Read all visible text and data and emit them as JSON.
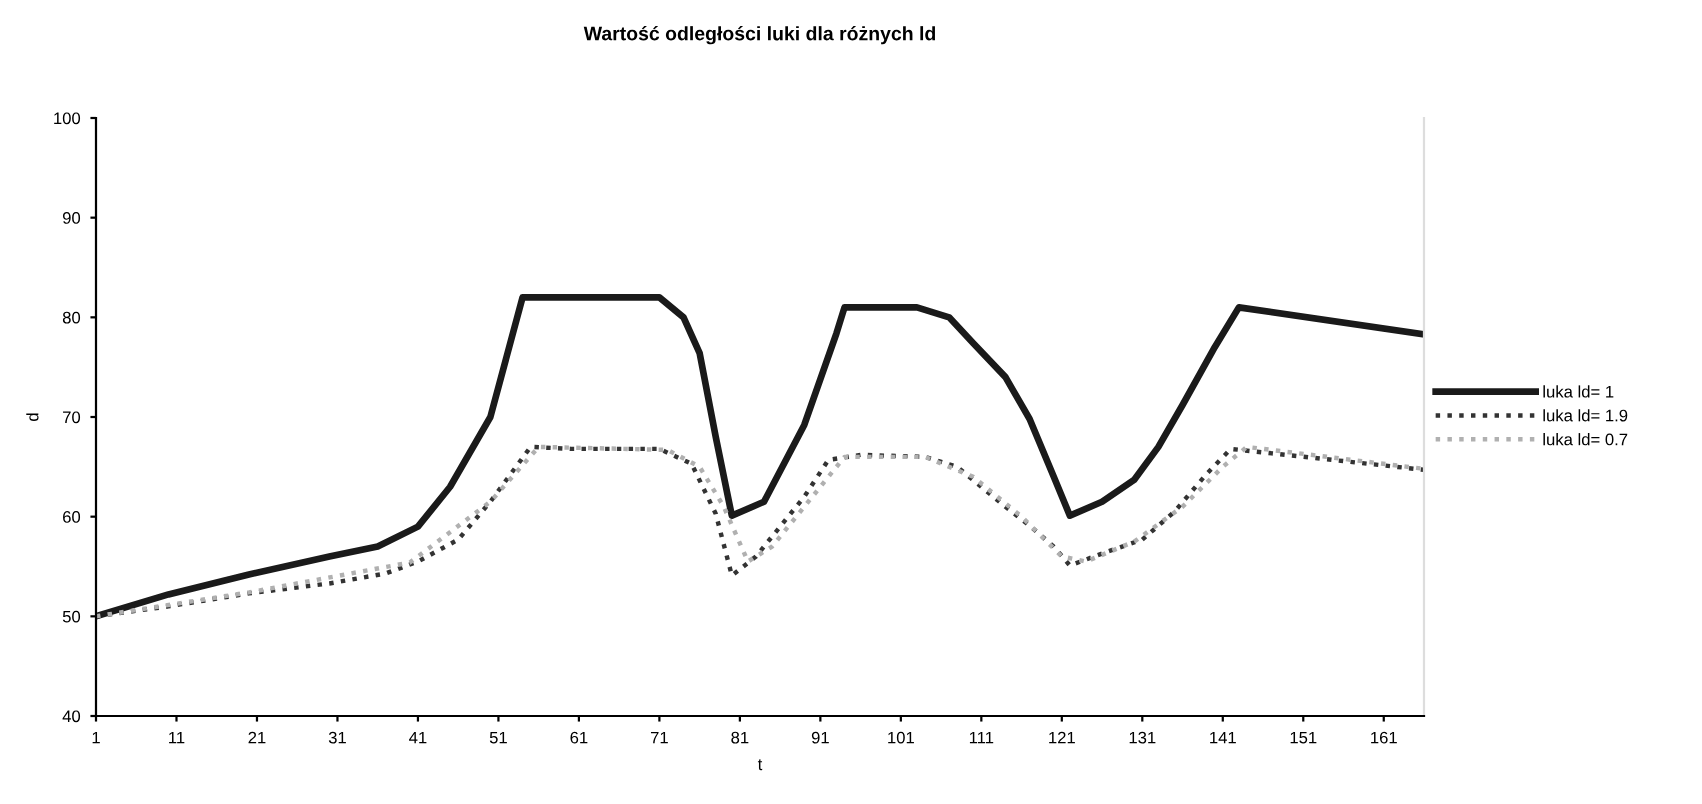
{
  "chart_data": {
    "type": "line",
    "title": "Wartość odległości luki dla różnych ld",
    "xlabel": "t",
    "ylabel": "d",
    "xlim": [
      1,
      166
    ],
    "ylim": [
      40,
      100
    ],
    "xticks": [
      1,
      11,
      21,
      31,
      41,
      51,
      61,
      71,
      81,
      91,
      101,
      111,
      121,
      131,
      141,
      151,
      161
    ],
    "yticks": [
      40,
      50,
      60,
      70,
      80,
      90,
      100
    ],
    "grid": false,
    "legend": "right",
    "marker": "none",
    "series": [
      {
        "name": "luka ld= 1",
        "color": "#1a1a1a",
        "line_style": "solid",
        "x": [
          1,
          10,
          20,
          30,
          36,
          41,
          45,
          50,
          54,
          60,
          71,
          74,
          76,
          78,
          80,
          84,
          89,
          93,
          94,
          103,
          107,
          110,
          114,
          117,
          120,
          122,
          126,
          130,
          133,
          136,
          140,
          143,
          166
        ],
        "values": [
          50,
          52.2,
          54.2,
          56,
          57,
          59,
          63,
          70,
          82,
          82,
          82,
          80,
          76.4,
          68,
          60.1,
          61.5,
          69.2,
          78.4,
          81,
          81,
          80,
          77.4,
          74,
          69.8,
          64,
          60.1,
          61.5,
          63.7,
          67,
          71.2,
          77,
          81,
          78.3
        ]
      },
      {
        "name": "luka ld= 1.9",
        "color": "#333333",
        "line_style": "dotted",
        "x": [
          1,
          10,
          20,
          30,
          37,
          41,
          46,
          50,
          55,
          60,
          71,
          75,
          78,
          80,
          83,
          86,
          89,
          92,
          96,
          104,
          108,
          111,
          114,
          117,
          120,
          122,
          126,
          131,
          135,
          139,
          142,
          166
        ],
        "values": [
          50,
          51,
          52.3,
          53.3,
          54.3,
          55.5,
          57.7,
          61.5,
          67,
          66.8,
          66.8,
          65.3,
          60.3,
          54.1,
          56,
          59,
          62,
          65.7,
          66.2,
          66,
          65,
          63,
          61,
          59.1,
          57,
          55.1,
          56.3,
          57.7,
          60.5,
          64.3,
          66.8,
          64.7
        ]
      },
      {
        "name": "luka ld= 0.7",
        "color": "#b0b0b0",
        "line_style": "dotted",
        "x": [
          1,
          20,
          40,
          50,
          56,
          72,
          76,
          79,
          82,
          85,
          88,
          91,
          94,
          104,
          110,
          116,
          121,
          124,
          130,
          136,
          141,
          144,
          166
        ],
        "values": [
          50,
          52.4,
          55.4,
          61.5,
          67,
          66.7,
          65,
          61,
          55.5,
          57,
          60,
          63,
          66,
          66,
          64,
          60,
          56,
          55.5,
          57.5,
          61,
          65,
          67,
          64.8
        ]
      }
    ]
  }
}
